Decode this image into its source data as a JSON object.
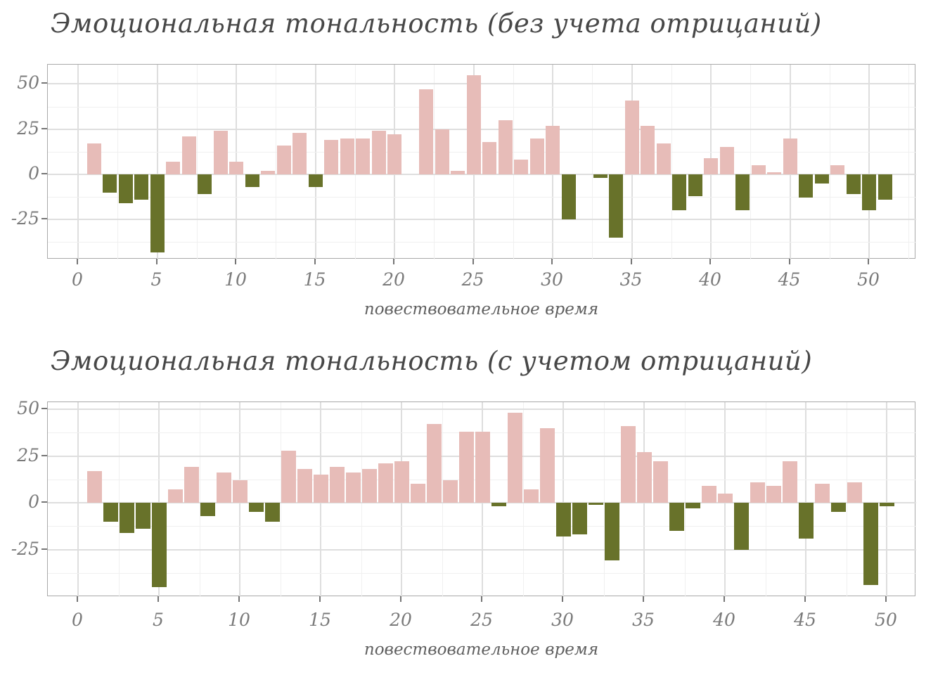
{
  "figure": {
    "background": "#ffffff"
  },
  "colors": {
    "positive_bar": "#e7bcb8",
    "negative_bar": "#68722a",
    "grid_major": "#dedede",
    "grid_minor": "#f0f0f0",
    "panel_border": "#a9a9a9",
    "tick_text": "#7a7a7a",
    "title_text": "#474747"
  },
  "chart_data": [
    {
      "type": "bar",
      "title": "Эмоциональная тональность (без учета отрицаний)",
      "xlabel": "повествовательное время",
      "x_ticks": [
        0,
        5,
        10,
        15,
        20,
        25,
        30,
        35,
        40,
        45,
        50
      ],
      "y_ticks": [
        50,
        25,
        0,
        -25
      ],
      "ylim": [
        -48,
        60
      ],
      "x_of_first_bar": 1,
      "grid": true,
      "legend": "none",
      "positive_color": "#e7bcb8",
      "negative_color": "#68722a",
      "values": [
        17,
        -10,
        -16,
        -14,
        -43,
        7,
        21,
        -11,
        24,
        7,
        -7,
        2,
        16,
        23,
        -7,
        19,
        20,
        20,
        24,
        22,
        0,
        47,
        25,
        2,
        55,
        18,
        30,
        8,
        20,
        27,
        -25,
        0,
        -2,
        -35,
        41,
        27,
        17,
        -20,
        -12,
        9,
        15,
        -20,
        5,
        1,
        20,
        -13,
        -5,
        5,
        -11,
        -20,
        -14
      ]
    },
    {
      "type": "bar",
      "title": "Эмоциональная тональность (с учетом отрицаний)",
      "xlabel": "повествовательное время",
      "x_ticks": [
        0,
        5,
        10,
        15,
        20,
        25,
        30,
        35,
        40,
        45,
        50
      ],
      "y_ticks": [
        50,
        25,
        0,
        -25
      ],
      "ylim": [
        -50,
        54
      ],
      "x_of_first_bar": 1,
      "grid": true,
      "legend": "none",
      "positive_color": "#e7bcb8",
      "negative_color": "#68722a",
      "values": [
        17,
        -10,
        -16,
        -14,
        -45,
        7,
        19,
        -7,
        16,
        12,
        -5,
        -10,
        28,
        18,
        15,
        19,
        16,
        18,
        21,
        22,
        10,
        42,
        12,
        38,
        38,
        -2,
        48,
        7,
        40,
        -18,
        -17,
        -1,
        -31,
        41,
        27,
        22,
        -15,
        -3,
        9,
        5,
        -25,
        11,
        9,
        22,
        -19,
        10,
        -5,
        11,
        -44,
        -2
      ]
    }
  ]
}
